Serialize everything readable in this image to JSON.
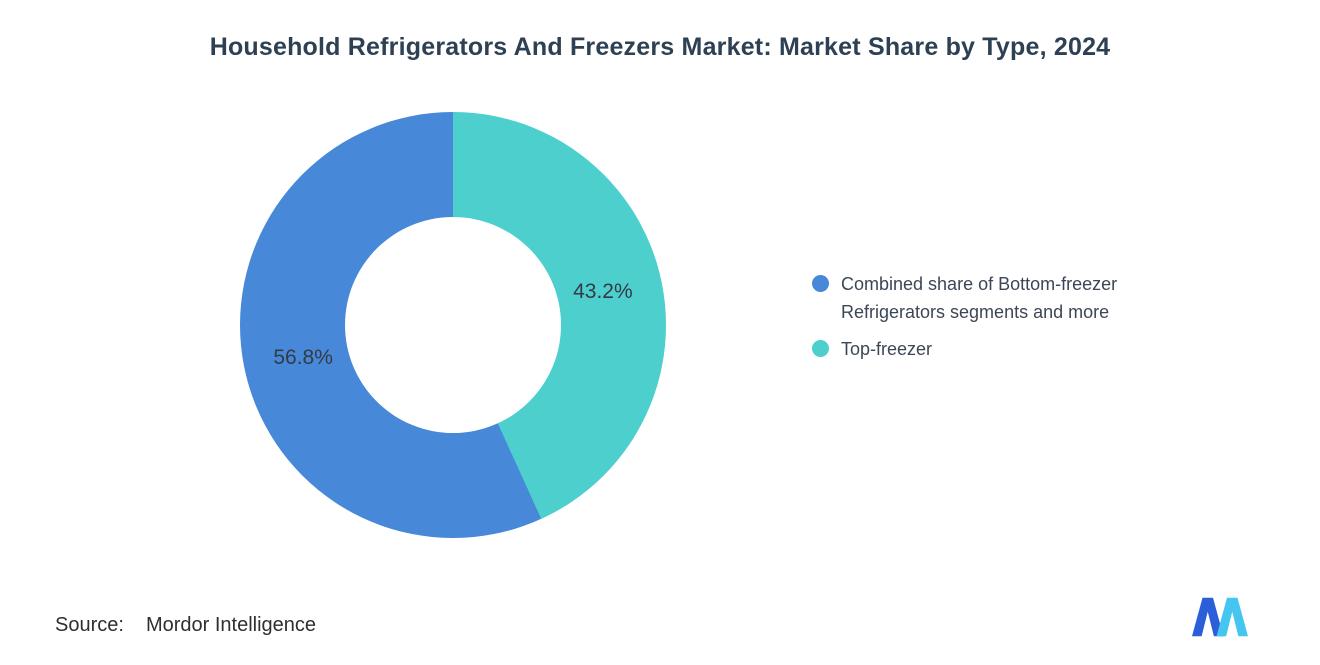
{
  "source": {
    "label": "Source:",
    "value": "Mordor Intelligence"
  },
  "logo": {
    "name": "mordor-intelligence-logo",
    "colors": {
      "dark": "#2b5fd9",
      "light": "#45c6f1"
    }
  },
  "chart_data": {
    "type": "pie",
    "donut": true,
    "title": "Household Refrigerators And Freezers Market: Market Share by Type, 2024",
    "start_angle_deg": 0,
    "direction": "clockwise",
    "hole_ratio": 0.507,
    "legend_position": "right",
    "segments": [
      {
        "label": "Top-freezer",
        "value": 43.2,
        "display_label": "43.2%",
        "color": "#4dcfce"
      },
      {
        "label": "Combined share of Bottom-freezer Refrigerators segments and more",
        "value": 56.8,
        "display_label": "56.8%",
        "color": "#4788d9"
      }
    ],
    "legend": [
      {
        "label": "Combined share of Bottom-freezer Refrigerators segments and more",
        "color": "#4788d9"
      },
      {
        "label": "Top-freezer",
        "color": "#4dcfce"
      }
    ]
  }
}
